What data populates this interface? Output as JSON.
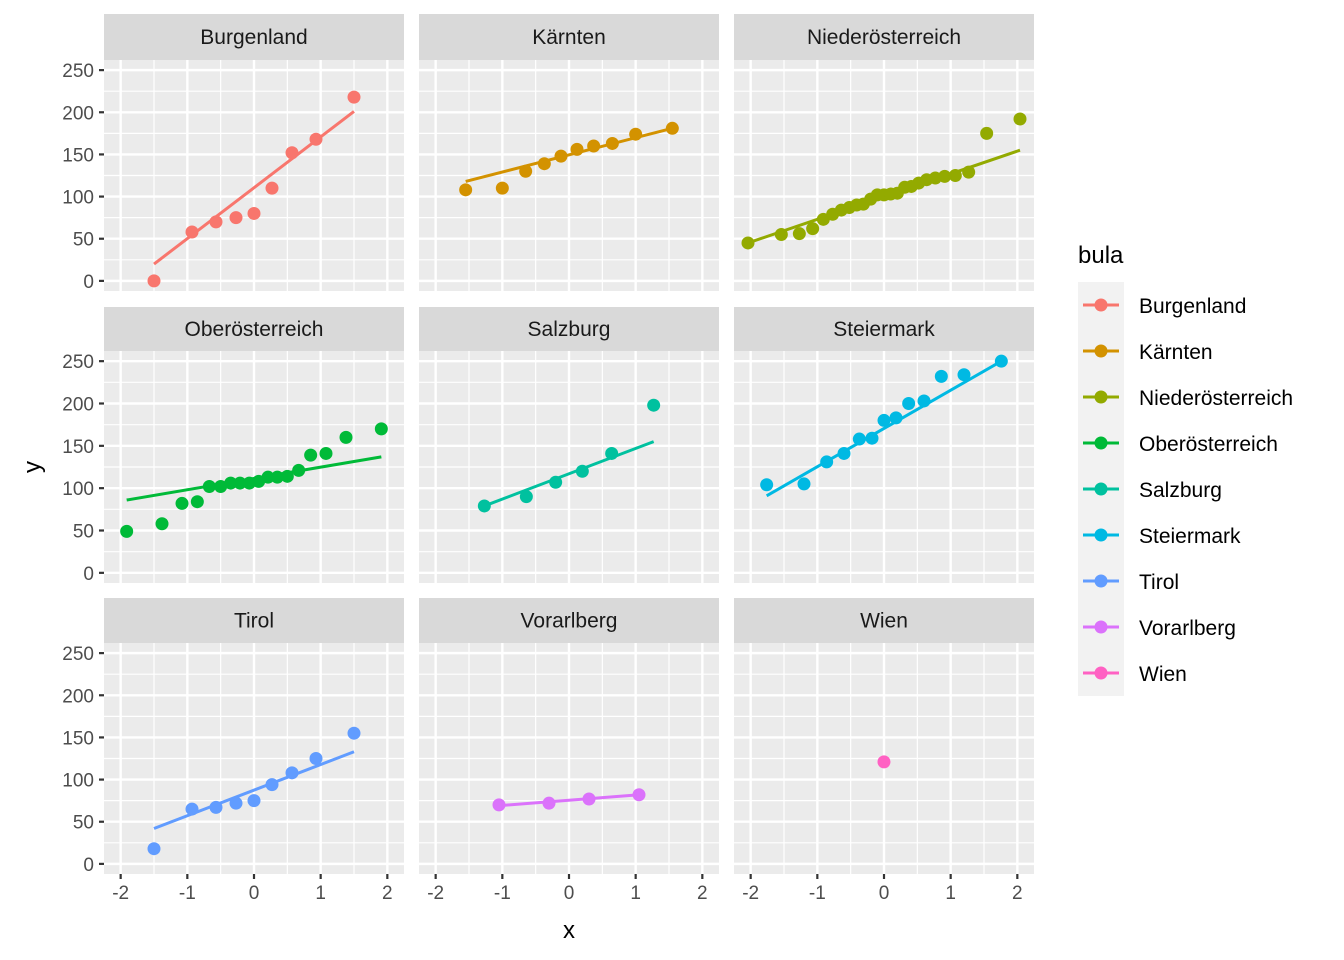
{
  "chart_data": {
    "type": "scatter",
    "facet_variable": "bula",
    "xlabel": "x",
    "ylabel": "y",
    "xlim": [
      -2.25,
      2.25
    ],
    "ylim": [
      -12,
      262
    ],
    "x_ticks": [
      -2,
      -1,
      0,
      1,
      2
    ],
    "x_tick_labels": [
      "-2",
      "-1",
      "0",
      "1",
      "2"
    ],
    "y_ticks": [
      0,
      50,
      100,
      150,
      200,
      250
    ],
    "y_tick_labels": [
      "0",
      "50",
      "100",
      "150",
      "200",
      "250"
    ],
    "grid": true,
    "legend": {
      "title": "bula",
      "position": "right"
    },
    "series": [
      {
        "name": "Burgenland",
        "color": "#F8766D",
        "points": [
          [
            -1.5,
            0
          ],
          [
            -0.93,
            58
          ],
          [
            -0.57,
            70
          ],
          [
            -0.27,
            75
          ],
          [
            0.0,
            80
          ],
          [
            0.27,
            110
          ],
          [
            0.57,
            152
          ],
          [
            0.93,
            168
          ],
          [
            1.5,
            218
          ]
        ],
        "fit": [
          [
            -1.5,
            20
          ],
          [
            1.5,
            201
          ]
        ]
      },
      {
        "name": "Kärnten",
        "color": "#D39200",
        "points": [
          [
            -1.55,
            108
          ],
          [
            -1.0,
            110
          ],
          [
            -0.65,
            130
          ],
          [
            -0.37,
            139
          ],
          [
            -0.12,
            148
          ],
          [
            0.12,
            156
          ],
          [
            0.37,
            160
          ],
          [
            0.65,
            163
          ],
          [
            1.0,
            174
          ],
          [
            1.55,
            181
          ]
        ],
        "fit": [
          [
            -1.55,
            118
          ],
          [
            1.55,
            181
          ]
        ]
      },
      {
        "name": "Niederösterreich",
        "color": "#93AA00",
        "points": [
          [
            -2.04,
            45
          ],
          [
            -1.54,
            55
          ],
          [
            -1.27,
            56
          ],
          [
            -1.07,
            62
          ],
          [
            -0.91,
            73
          ],
          [
            -0.77,
            79
          ],
          [
            -0.64,
            84
          ],
          [
            -0.52,
            87
          ],
          [
            -0.41,
            90
          ],
          [
            -0.31,
            91
          ],
          [
            -0.2,
            97
          ],
          [
            -0.1,
            102
          ],
          [
            0.0,
            102
          ],
          [
            0.1,
            103
          ],
          [
            0.2,
            104
          ],
          [
            0.31,
            111
          ],
          [
            0.41,
            112
          ],
          [
            0.52,
            116
          ],
          [
            0.64,
            120
          ],
          [
            0.77,
            122
          ],
          [
            0.91,
            124
          ],
          [
            1.07,
            125
          ],
          [
            1.27,
            129
          ],
          [
            1.54,
            175
          ],
          [
            2.04,
            192
          ]
        ],
        "fit": [
          [
            -2.04,
            45
          ],
          [
            2.04,
            155
          ]
        ]
      },
      {
        "name": "Oberösterreich",
        "color": "#00BA38",
        "points": [
          [
            -1.91,
            49
          ],
          [
            -1.38,
            58
          ],
          [
            -1.08,
            82
          ],
          [
            -0.85,
            84
          ],
          [
            -0.67,
            102
          ],
          [
            -0.5,
            102
          ],
          [
            -0.35,
            106
          ],
          [
            -0.21,
            106
          ],
          [
            -0.07,
            106
          ],
          [
            0.07,
            108
          ],
          [
            0.21,
            113
          ],
          [
            0.35,
            113
          ],
          [
            0.5,
            114
          ],
          [
            0.67,
            121
          ],
          [
            0.85,
            139
          ],
          [
            1.08,
            141
          ],
          [
            1.38,
            160
          ],
          [
            1.91,
            170
          ]
        ],
        "fit": [
          [
            -1.91,
            86
          ],
          [
            1.91,
            137
          ]
        ]
      },
      {
        "name": "Salzburg",
        "color": "#00C19F",
        "points": [
          [
            -1.27,
            79
          ],
          [
            -0.64,
            90
          ],
          [
            -0.2,
            107
          ],
          [
            0.2,
            120
          ],
          [
            0.64,
            141
          ],
          [
            1.27,
            198
          ]
        ],
        "fit": [
          [
            -1.27,
            79
          ],
          [
            1.27,
            155
          ]
        ]
      },
      {
        "name": "Steiermark",
        "color": "#00B9E3",
        "points": [
          [
            -1.76,
            104
          ],
          [
            -1.2,
            105
          ],
          [
            -0.86,
            131
          ],
          [
            -0.6,
            141
          ],
          [
            -0.37,
            158
          ],
          [
            -0.18,
            159
          ],
          [
            0.0,
            180
          ],
          [
            0.18,
            183
          ],
          [
            0.37,
            200
          ],
          [
            0.6,
            203
          ],
          [
            0.86,
            232
          ],
          [
            1.2,
            234
          ],
          [
            1.76,
            250
          ]
        ],
        "fit": [
          [
            -1.76,
            91
          ],
          [
            1.76,
            250
          ]
        ]
      },
      {
        "name": "Tirol",
        "color": "#619CFF",
        "points": [
          [
            -1.5,
            18
          ],
          [
            -0.93,
            65
          ],
          [
            -0.57,
            67
          ],
          [
            -0.27,
            72
          ],
          [
            0.0,
            75
          ],
          [
            0.27,
            94
          ],
          [
            0.57,
            108
          ],
          [
            0.93,
            125
          ],
          [
            1.5,
            155
          ]
        ],
        "fit": [
          [
            -1.5,
            42
          ],
          [
            1.5,
            133
          ]
        ]
      },
      {
        "name": "Vorarlberg",
        "color": "#DB72FB",
        "points": [
          [
            -1.05,
            70
          ],
          [
            -0.3,
            72
          ],
          [
            0.3,
            77
          ],
          [
            1.05,
            82
          ]
        ],
        "fit": [
          [
            -1.05,
            69
          ],
          [
            1.05,
            82
          ]
        ]
      },
      {
        "name": "Wien",
        "color": "#FF61C3",
        "points": [
          [
            0.0,
            121
          ]
        ],
        "fit": []
      }
    ]
  }
}
